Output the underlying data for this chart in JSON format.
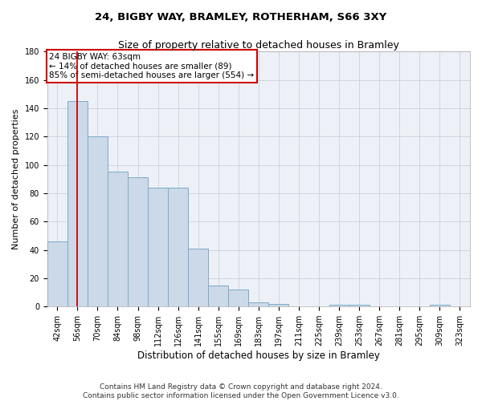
{
  "title": "24, BIGBY WAY, BRAMLEY, ROTHERHAM, S66 3XY",
  "subtitle": "Size of property relative to detached houses in Bramley",
  "xlabel": "Distribution of detached houses by size in Bramley",
  "ylabel": "Number of detached properties",
  "categories": [
    "42sqm",
    "56sqm",
    "70sqm",
    "84sqm",
    "98sqm",
    "112sqm",
    "126sqm",
    "141sqm",
    "155sqm",
    "169sqm",
    "183sqm",
    "197sqm",
    "211sqm",
    "225sqm",
    "239sqm",
    "253sqm",
    "267sqm",
    "281sqm",
    "295sqm",
    "309sqm",
    "323sqm"
  ],
  "values": [
    46,
    145,
    120,
    95,
    91,
    84,
    84,
    41,
    15,
    12,
    3,
    2,
    0,
    0,
    1,
    1,
    0,
    0,
    0,
    1,
    0
  ],
  "bar_color": "#ccd9e8",
  "bar_edge_color": "#7aaac8",
  "bar_width": 1.0,
  "annotation_box_text": "24 BIGBY WAY: 63sqm\n← 14% of detached houses are smaller (89)\n85% of semi-detached houses are larger (554) →",
  "annotation_box_color": "#ffffff",
  "annotation_box_edge_color": "#cc0000",
  "red_line_x": 1.0,
  "ylim": [
    0,
    180
  ],
  "yticks": [
    0,
    20,
    40,
    60,
    80,
    100,
    120,
    140,
    160,
    180
  ],
  "grid_color": "#c8d0dc",
  "background_color": "#edf1f7",
  "footer_line1": "Contains HM Land Registry data © Crown copyright and database right 2024.",
  "footer_line2": "Contains public sector information licensed under the Open Government Licence v3.0.",
  "title_fontsize": 9.5,
  "subtitle_fontsize": 9,
  "xlabel_fontsize": 8.5,
  "ylabel_fontsize": 8,
  "tick_fontsize": 7,
  "footer_fontsize": 6.5,
  "annot_fontsize": 7.5
}
